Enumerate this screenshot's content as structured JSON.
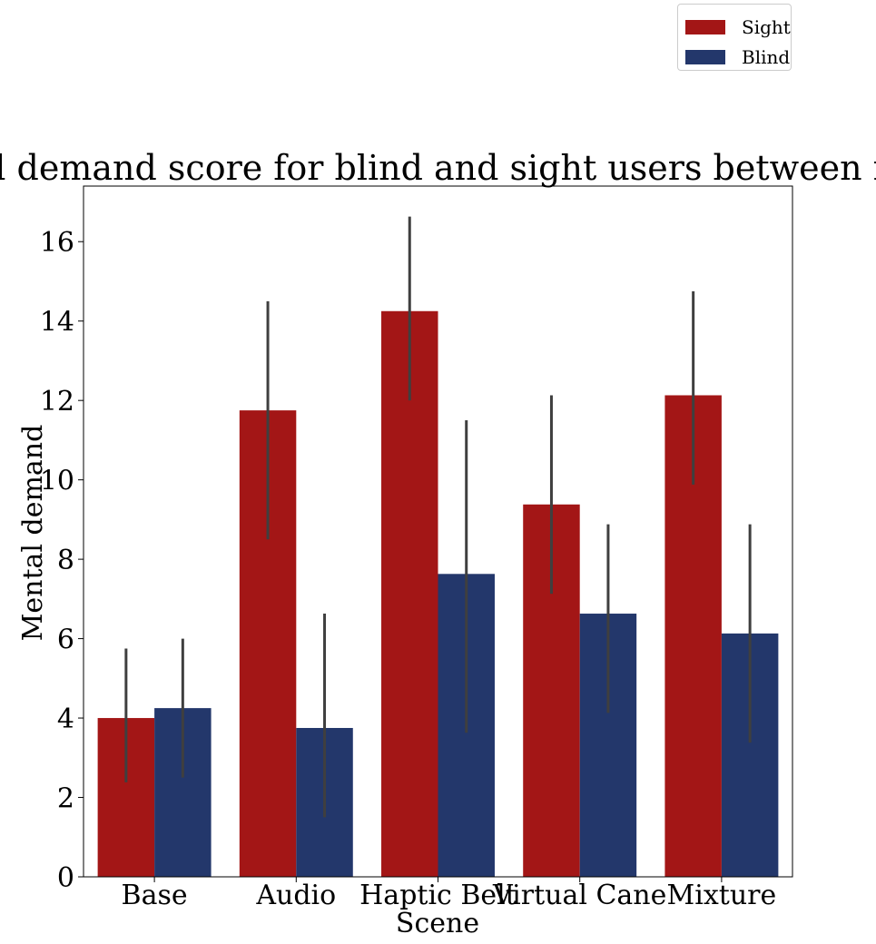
{
  "chart_data": {
    "type": "bar",
    "title": "Mental demand score for blind and sight users between rounds",
    "xlabel": "Scene",
    "ylabel": "Mental demand",
    "categories": [
      "Base",
      "Audio",
      "Haptic Belt",
      "Virtual Cane",
      "Mixture"
    ],
    "ylim": [
      0,
      17.4
    ],
    "yticks": [
      0,
      2,
      4,
      6,
      8,
      10,
      12,
      14,
      16
    ],
    "grid": false,
    "legend_position": "top-right outside",
    "series": [
      {
        "name": "Sight",
        "color": "#a31616",
        "values": [
          4.0,
          11.75,
          14.25,
          9.38,
          12.13
        ],
        "ci_low": [
          2.38,
          8.5,
          12.0,
          7.13,
          9.88
        ],
        "ci_high": [
          5.75,
          14.5,
          16.63,
          12.13,
          14.75
        ]
      },
      {
        "name": "Blind",
        "color": "#23376b",
        "values": [
          4.25,
          3.75,
          7.63,
          6.63,
          6.13
        ],
        "ci_low": [
          2.5,
          1.5,
          3.63,
          4.13,
          3.38
        ],
        "ci_high": [
          6.0,
          6.63,
          11.5,
          8.88,
          8.88
        ]
      }
    ],
    "errorbar_color": "#3f3f3f"
  },
  "legend": {
    "items": [
      {
        "label": "Sight",
        "color": "#a31616"
      },
      {
        "label": "Blind",
        "color": "#23376b"
      }
    ]
  }
}
